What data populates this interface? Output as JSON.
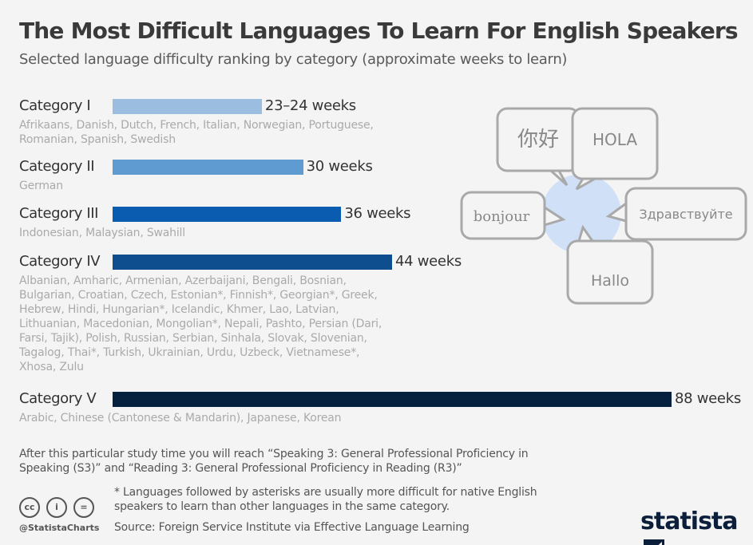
{
  "title": "The Most Difficult Languages To Learn For English Speakers",
  "subtitle": "Selected language difficulty ranking by category (approximate weeks to learn)",
  "chart_data": {
    "type": "bar",
    "orientation": "horizontal",
    "title": "The Most Difficult Languages To Learn For English Speakers",
    "subtitle": "Selected language difficulty ranking by category (approximate weeks to learn)",
    "categories": [
      "Category I",
      "Category II",
      "Category III",
      "Category IV",
      "Category V"
    ],
    "values": [
      23.5,
      30,
      36,
      44,
      88
    ],
    "value_labels": [
      "23–24 weeks",
      "30 weeks",
      "36 weeks",
      "44 weeks",
      "88 weeks"
    ],
    "colors": [
      "#9bbde0",
      "#5f9bd0",
      "#0a5cb0",
      "#0e4d8e",
      "#06213f"
    ],
    "languages": [
      "Afrikaans, Danish, Dutch, French, Italian, Norwegian, Portuguese, Romanian, Spanish, Swedish",
      "German",
      "Indonesian, Malaysian, Swahill",
      "Albanian, Amharic, Armenian, Azerbaijani, Bengali, Bosnian, Bulgarian, Croatian, Czech, Estonian*, Finnish*, Georgian*, Greek, Hebrew, Hindi, Hungarian*, Icelandic, Khmer, Lao, Latvian, Lithuanian, Macedonian, Mongolian*, Nepali, Pashto, Persian (Dari, Farsi, Tajik), Polish, Russian, Serbian, Sinhala, Slovak, Slovenian, Tagalog, Thai*, Turkish, Ukrainian, Urdu, Uzbeck, Vietnamese*, Xhosa, Zulu",
      "Arabic, Chinese (Cantonese & Mandarin), Japanese, Korean"
    ],
    "xlim": [
      0,
      88
    ],
    "grid": false
  },
  "bubbles": [
    "你好",
    "HOLA",
    "bonjour",
    "Здравствуйте",
    "Hallo"
  ],
  "footer": {
    "note": "After this particular study time you will reach “Speaking 3: General Professional Proficiency in Speaking (S3)” and “Reading 3: General Professional Proficiency in Reading (R3)”",
    "asterisk_note": "* Languages followed by asterisks are usually more difficult for native English speakers to learn than other languages in the same category.",
    "source": "Source: Foreign Service Institute via Effective Language Learning",
    "handle": "@StatistaCharts",
    "logo": "statista",
    "license_icons": [
      "cc",
      "by",
      "nd"
    ]
  }
}
